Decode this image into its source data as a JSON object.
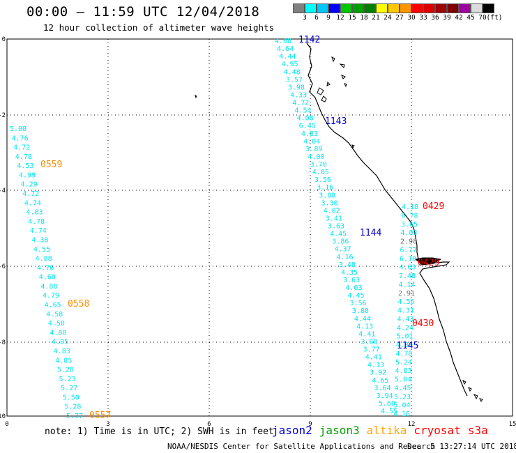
{
  "header": {
    "title": "00:00 – 11:59 UTC 12/04/2018",
    "subtitle": "12 hour collection of altimeter wave heights"
  },
  "legend": {
    "colors": [
      "#808080",
      "#00ffff",
      "#00c8ff",
      "#0000ff",
      "#00c800",
      "#00a000",
      "#008000",
      "#ffff00",
      "#ffc800",
      "#ff9600",
      "#ff0000",
      "#dc0000",
      "#a00000",
      "#800000",
      "#a000a0",
      "#dcdcdc",
      "#000000"
    ],
    "labels": [
      "3",
      "6",
      "9",
      "12",
      "15",
      "18",
      "21",
      "24",
      "27",
      "30",
      "33",
      "36",
      "39",
      "42",
      "45",
      "70",
      "(ft)"
    ]
  },
  "map": {
    "x_ticks": [
      "0",
      "3",
      "6",
      "9",
      "12",
      "15"
    ],
    "y_ticks": [
      "0",
      "-2",
      "-4",
      "-6",
      "-8",
      "-10"
    ],
    "track_a": {
      "color": "#00e5ee",
      "values": [
        "5.00",
        "4.76",
        "4.72",
        "4.78",
        "4.53",
        "4.99",
        "4.29",
        "4.72",
        "4.74",
        "4.83",
        "4.78",
        "4.74",
        "4.38",
        "4.55",
        "4.88",
        "4.76",
        "4.60",
        "4.88",
        "4.79",
        "4.65",
        "4.58",
        "4.50",
        "4.88",
        "4.85",
        "4.83",
        "4.85",
        "5.28",
        "5.23",
        "5.27",
        "5.50",
        "5.28",
        "5.77"
      ],
      "pass_labels": [
        {
          "text": "0559",
          "color": "#ff8c00"
        },
        {
          "text": "0558",
          "color": "#ff8c00"
        },
        {
          "text": "0557",
          "color": "#ff8c00"
        }
      ]
    },
    "track_b": {
      "color": "#00e5ee",
      "values": [
        "4.08",
        "4.64",
        "4.44",
        "4.95",
        "4.48",
        "3.57",
        "3.98",
        "4.33",
        "4.72",
        "4.54",
        "4.08",
        "6.45",
        "4.83",
        "4.04",
        "3.89",
        "4.00",
        "3.70",
        "4.05",
        "3.56",
        "3.16",
        "3.88",
        "3.30",
        "4.02",
        "3.41",
        "3.63",
        "4.45",
        "3.86",
        "4.37",
        "4.16",
        "3.48",
        "4.35",
        "3.63",
        "4.03",
        "4.45",
        "3.56",
        "3.88",
        "4.44",
        "4.13",
        "4.41",
        "3.68",
        "3.77",
        "4.41",
        "4.13",
        "3.92",
        "4.65",
        "3.64",
        "3.94",
        "5.60",
        "4.55"
      ],
      "pass_labels": [
        {
          "text": "1142",
          "color": "#0000cd"
        },
        {
          "text": "1143",
          "color": "#0000cd"
        },
        {
          "text": "1144",
          "color": "#0000cd"
        },
        {
          "text": "1145",
          "color": "#0000cd"
        }
      ]
    },
    "track_c": {
      "color": "#00e5ee",
      "values": [
        "4.18",
        "6.78",
        "3.65",
        "4.03",
        "2.98",
        "6.77",
        "6.10",
        "4.63",
        "7.48",
        "4.14",
        "2.91",
        "4.56",
        "4.31",
        "4.43",
        "4.24",
        "5.01",
        "4.80",
        "4.70",
        "5.24",
        "4.83",
        "5.04",
        "4.45",
        "5.23",
        "5.04",
        "4.16"
      ],
      "grey_values": [
        "2.98",
        "2.91"
      ],
      "pass_labels": [
        {
          "text": "0429",
          "color": "#ff0000"
        },
        {
          "text": "0429",
          "color": "#ff0000"
        },
        {
          "text": "0430",
          "color": "#ff0000"
        }
      ]
    }
  },
  "footer": {
    "note": "note: 1) Time is in UTC; 2) SWH is in feet",
    "satellites": [
      {
        "name": "jason2",
        "color": "#0000cd"
      },
      {
        "name": "jason3",
        "color": "#00a000"
      },
      {
        "name": "altika",
        "color": "#ffa500"
      },
      {
        "name": "cryosat",
        "color": "#ff0000"
      },
      {
        "name": "s3a",
        "color": "#ff0000"
      }
    ],
    "credit": "NOAA/NESDIS Center for Satellite Applications and Research",
    "timestamp": "Dec  5 13:27:14 UTC 2018"
  }
}
